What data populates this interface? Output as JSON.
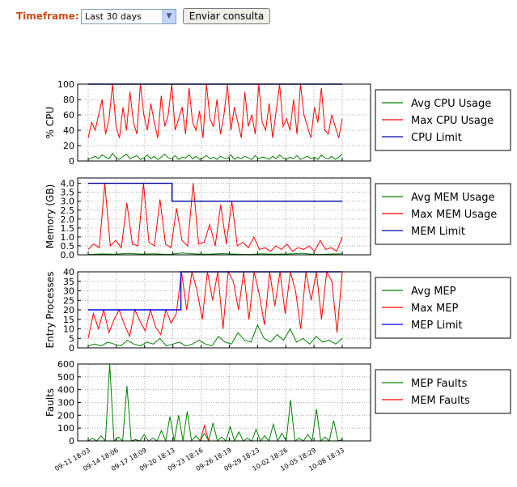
{
  "form": {
    "timeframe_label": "Timeframe:",
    "timeframe_value": "Last 30 days",
    "submit_label": "Enviar consulta"
  },
  "chart_data": [
    {
      "type": "line",
      "ylabel": "% CPU",
      "ylim": [
        0,
        100
      ],
      "yticks": [
        0,
        20,
        40,
        60,
        80,
        100
      ],
      "grid": true,
      "legend_position": "right",
      "series": [
        {
          "name": "Avg CPU Usage",
          "color": "#008000",
          "values": [
            2,
            4,
            6,
            3,
            8,
            5,
            3,
            10,
            4,
            2,
            6,
            9,
            3,
            5,
            7,
            2,
            4,
            8,
            3,
            6,
            2,
            5,
            9,
            4,
            3,
            7,
            2,
            5,
            4,
            8,
            3,
            6,
            2,
            4,
            7,
            3,
            5,
            2,
            6,
            4,
            3,
            8,
            2,
            5,
            3,
            6,
            4,
            2,
            7,
            3,
            5,
            4,
            2,
            6,
            3,
            8,
            4,
            2,
            5,
            3,
            7,
            2,
            4,
            6,
            3,
            5,
            2,
            8,
            4,
            3,
            6,
            2,
            5,
            9
          ]
        },
        {
          "name": "Max CPU Usage",
          "color": "#ff0000",
          "values": [
            30,
            50,
            40,
            60,
            80,
            35,
            55,
            100,
            45,
            30,
            70,
            40,
            90,
            50,
            35,
            100,
            60,
            40,
            75,
            50,
            30,
            85,
            45,
            60,
            100,
            40,
            55,
            70,
            35,
            95,
            50,
            40,
            65,
            30,
            100,
            55,
            45,
            80,
            35,
            60,
            100,
            40,
            70,
            50,
            30,
            90,
            45,
            60,
            35,
            100,
            50,
            40,
            75,
            30,
            65,
            100,
            45,
            55,
            40,
            80,
            35,
            100,
            60,
            45,
            30,
            70,
            50,
            95,
            40,
            35,
            60,
            45,
            30,
            55
          ]
        },
        {
          "name": "CPU Limit",
          "color": "#0000aa",
          "values": [
            100,
            100
          ]
        }
      ]
    },
    {
      "type": "line",
      "ylabel": "Memory (GB)",
      "ylim": [
        0,
        4.3
      ],
      "yticks": [
        0.0,
        0.5,
        1.0,
        1.5,
        2.0,
        2.5,
        3.0,
        3.5,
        4.0
      ],
      "grid": true,
      "legend_position": "right",
      "series": [
        {
          "name": "Avg MEM Usage",
          "color": "#008000",
          "values": [
            0.02,
            0.05,
            0.03,
            0.08,
            0.04,
            0.06,
            0.02,
            0.1,
            0.05,
            0.03,
            0.07,
            0.04,
            0.02,
            0.06,
            0.03,
            0.05,
            0.08,
            0.02,
            0.04,
            0.06
          ]
        },
        {
          "name": "Max MEM Usage",
          "color": "#ff0000",
          "values": [
            0.3,
            0.6,
            0.4,
            4.0,
            0.5,
            0.8,
            0.4,
            2.9,
            0.6,
            0.5,
            4.0,
            0.7,
            0.5,
            3.1,
            0.6,
            0.4,
            2.6,
            0.8,
            0.5,
            4.0,
            0.6,
            0.7,
            1.7,
            0.5,
            2.8,
            0.6,
            3.0,
            0.5,
            0.7,
            0.4,
            1.0,
            0.3,
            0.4,
            0.2,
            0.5,
            0.3,
            0.6,
            0.2,
            0.4,
            0.3,
            0.5,
            0.2,
            0.8,
            0.3,
            0.4,
            0.2,
            1.0
          ]
        },
        {
          "name": "MEM Limit",
          "color": "#0000aa",
          "x": [
            0,
            0.33,
            0.33,
            1
          ],
          "values": [
            4.0,
            4.0,
            3.0,
            3.0
          ]
        }
      ]
    },
    {
      "type": "line",
      "ylabel": "Entry Processes",
      "ylim": [
        0,
        40
      ],
      "yticks": [
        0,
        5,
        10,
        15,
        20,
        25,
        30,
        35,
        40
      ],
      "grid": true,
      "legend_position": "right",
      "series": [
        {
          "name": "Avg MEP",
          "color": "#008000",
          "values": [
            1,
            2,
            1,
            3,
            2,
            1,
            4,
            2,
            1,
            3,
            2,
            5,
            1,
            2,
            3,
            1,
            2,
            4,
            2,
            1,
            6,
            3,
            2,
            8,
            4,
            3,
            12,
            5,
            3,
            7,
            4,
            10,
            3,
            5,
            2,
            6,
            3,
            4,
            2,
            5
          ]
        },
        {
          "name": "Max MEP",
          "color": "#ff0000",
          "values": [
            5,
            18,
            10,
            20,
            8,
            15,
            20,
            12,
            6,
            20,
            14,
            9,
            20,
            11,
            7,
            20,
            13,
            18,
            40,
            20,
            40,
            30,
            15,
            40,
            25,
            40,
            10,
            40,
            35,
            20,
            40,
            15,
            40,
            28,
            12,
            40,
            22,
            40,
            18,
            40,
            30,
            10,
            40,
            25,
            40,
            15,
            40,
            35,
            8,
            40
          ]
        },
        {
          "name": "MEP Limit",
          "color": "#0000ff",
          "x": [
            0,
            0.365,
            0.365,
            1
          ],
          "values": [
            20,
            20,
            40,
            40
          ]
        }
      ]
    },
    {
      "type": "line",
      "ylabel": "Faults",
      "ylim": [
        0,
        600
      ],
      "yticks": [
        0,
        100,
        200,
        300,
        400,
        500,
        600
      ],
      "xticks": [
        "09-11 18:03",
        "09-14 18:06",
        "09-17 18:09",
        "09-20 18:13",
        "09-23 18:16",
        "09-26 18:19",
        "09-29 18:23",
        "10-02 18:26",
        "10-05 18:29",
        "10-08 18:33"
      ],
      "grid": true,
      "legend_position": "right",
      "series": [
        {
          "name": "MEP Faults",
          "color": "#008000",
          "values": [
            0,
            20,
            0,
            40,
            0,
            600,
            0,
            30,
            0,
            430,
            0,
            10,
            0,
            50,
            0,
            20,
            0,
            80,
            0,
            190,
            0,
            200,
            0,
            230,
            0,
            40,
            0,
            60,
            0,
            140,
            0,
            30,
            0,
            110,
            0,
            70,
            0,
            20,
            0,
            90,
            0,
            40,
            0,
            130,
            0,
            60,
            0,
            320,
            0,
            20,
            0,
            50,
            0,
            250,
            0,
            30,
            0,
            160,
            0,
            10
          ]
        },
        {
          "name": "MEM Faults",
          "color": "#ff0000",
          "values": [
            0,
            0,
            0,
            0,
            0,
            0,
            0,
            0,
            0,
            0,
            0,
            0,
            0,
            0,
            0,
            0,
            0,
            0,
            0,
            0,
            0,
            0,
            0,
            0,
            0,
            0,
            0,
            120,
            0,
            0,
            0,
            0,
            0,
            0,
            0,
            0,
            0,
            0,
            0,
            0,
            0,
            0,
            0,
            0,
            0,
            0,
            0,
            0,
            0,
            0,
            0,
            0,
            0,
            0,
            0,
            0,
            0,
            0,
            0,
            0
          ]
        }
      ]
    }
  ]
}
